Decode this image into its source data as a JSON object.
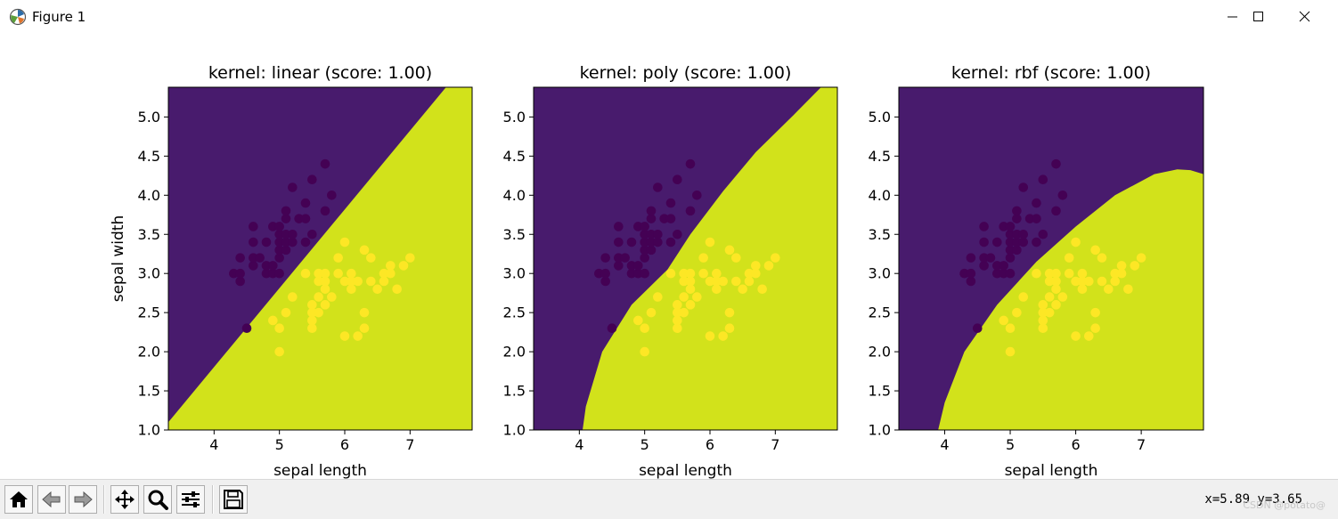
{
  "window": {
    "title": "Figure 1",
    "controls": {
      "minimize": "minimize",
      "maximize": "maximize",
      "close": "close"
    }
  },
  "toolbar": {
    "buttons": [
      "home-icon",
      "back-icon",
      "forward-icon",
      "pan-icon",
      "zoom-icon",
      "configure-icon",
      "save-icon"
    ],
    "coords": "x=5.89 y=3.65",
    "watermark": "CSDN @potato@"
  },
  "colors": {
    "class0": "#481b6d",
    "class1": "#d2e21b",
    "point0": "#440154",
    "point1": "#fde725"
  },
  "chart_data": [
    {
      "type": "scatter",
      "title": "kernel: linear (score: 1.00)",
      "xlabel": "sepal length",
      "ylabel": "sepal width",
      "xlim": [
        3.3,
        7.95
      ],
      "ylim": [
        1.0,
        5.38
      ],
      "xticks": [
        "4",
        "5",
        "6",
        "7"
      ],
      "yticks": [
        "1.0",
        "1.5",
        "2.0",
        "2.5",
        "3.0",
        "3.5",
        "4.0",
        "4.5",
        "5.0"
      ],
      "decision_boundary": [
        [
          3.3,
          1.1
        ],
        [
          7.55,
          5.38
        ]
      ]
    },
    {
      "type": "scatter",
      "title": "kernel: poly (score: 1.00)",
      "xlabel": "sepal length",
      "ylabel": "",
      "xlim": [
        3.3,
        7.95
      ],
      "ylim": [
        1.0,
        5.38
      ],
      "xticks": [
        "4",
        "5",
        "6",
        "7"
      ],
      "yticks": [
        "1.0",
        "1.5",
        "2.0",
        "2.5",
        "3.0",
        "3.5",
        "4.0",
        "4.5",
        "5.0"
      ],
      "decision_boundary": [
        [
          4.05,
          1.0
        ],
        [
          4.1,
          1.3
        ],
        [
          4.35,
          2.0
        ],
        [
          4.8,
          2.6
        ],
        [
          5.35,
          3.05
        ],
        [
          5.7,
          3.5
        ],
        [
          6.2,
          4.05
        ],
        [
          6.7,
          4.55
        ],
        [
          7.25,
          5.0
        ],
        [
          7.7,
          5.38
        ]
      ]
    },
    {
      "type": "scatter",
      "title": "kernel: rbf (score: 1.00)",
      "xlabel": "sepal length",
      "ylabel": "",
      "xlim": [
        3.3,
        7.95
      ],
      "ylim": [
        1.0,
        5.38
      ],
      "xticks": [
        "4",
        "5",
        "6",
        "7"
      ],
      "yticks": [
        "1.0",
        "1.5",
        "2.0",
        "2.5",
        "3.0",
        "3.5",
        "4.0",
        "4.5",
        "5.0"
      ],
      "decision_boundary": [
        [
          3.9,
          1.0
        ],
        [
          4.0,
          1.35
        ],
        [
          4.3,
          2.0
        ],
        [
          4.8,
          2.6
        ],
        [
          5.4,
          3.15
        ],
        [
          6.0,
          3.6
        ],
        [
          6.6,
          4.0
        ],
        [
          7.2,
          4.27
        ],
        [
          7.55,
          4.33
        ],
        [
          7.75,
          4.32
        ],
        [
          7.95,
          4.27
        ]
      ]
    }
  ],
  "scatter_points": {
    "class0": [
      [
        4.3,
        3.0
      ],
      [
        4.4,
        2.9
      ],
      [
        4.4,
        3.0
      ],
      [
        4.4,
        3.2
      ],
      [
        4.5,
        2.3
      ],
      [
        4.6,
        3.1
      ],
      [
        4.6,
        3.2
      ],
      [
        4.6,
        3.4
      ],
      [
        4.6,
        3.6
      ],
      [
        4.7,
        3.2
      ],
      [
        4.8,
        3.0
      ],
      [
        4.8,
        3.1
      ],
      [
        4.8,
        3.4
      ],
      [
        4.9,
        3.0
      ],
      [
        4.9,
        3.1
      ],
      [
        4.9,
        3.6
      ],
      [
        5.0,
        3.0
      ],
      [
        5.0,
        3.2
      ],
      [
        5.0,
        3.3
      ],
      [
        5.0,
        3.4
      ],
      [
        5.0,
        3.5
      ],
      [
        5.0,
        3.6
      ],
      [
        5.1,
        3.3
      ],
      [
        5.1,
        3.4
      ],
      [
        5.1,
        3.5
      ],
      [
        5.1,
        3.7
      ],
      [
        5.1,
        3.8
      ],
      [
        5.2,
        3.4
      ],
      [
        5.2,
        3.5
      ],
      [
        5.2,
        4.1
      ],
      [
        5.3,
        3.7
      ],
      [
        5.4,
        3.4
      ],
      [
        5.4,
        3.7
      ],
      [
        5.4,
        3.9
      ],
      [
        5.5,
        3.5
      ],
      [
        5.5,
        4.2
      ],
      [
        5.7,
        3.8
      ],
      [
        5.7,
        4.4
      ],
      [
        5.8,
        4.0
      ]
    ],
    "class1": [
      [
        4.9,
        2.4
      ],
      [
        5.0,
        2.0
      ],
      [
        5.0,
        2.3
      ],
      [
        5.1,
        2.5
      ],
      [
        5.2,
        2.7
      ],
      [
        5.4,
        3.0
      ],
      [
        5.5,
        2.3
      ],
      [
        5.5,
        2.4
      ],
      [
        5.5,
        2.5
      ],
      [
        5.5,
        2.6
      ],
      [
        5.6,
        2.5
      ],
      [
        5.6,
        2.7
      ],
      [
        5.6,
        2.9
      ],
      [
        5.6,
        3.0
      ],
      [
        5.7,
        2.6
      ],
      [
        5.7,
        2.8
      ],
      [
        5.7,
        2.9
      ],
      [
        5.7,
        3.0
      ],
      [
        5.8,
        2.7
      ],
      [
        5.9,
        3.0
      ],
      [
        5.9,
        3.2
      ],
      [
        6.0,
        2.2
      ],
      [
        6.0,
        2.9
      ],
      [
        6.0,
        3.4
      ],
      [
        6.1,
        2.8
      ],
      [
        6.1,
        2.9
      ],
      [
        6.1,
        3.0
      ],
      [
        6.2,
        2.2
      ],
      [
        6.2,
        2.9
      ],
      [
        6.3,
        2.3
      ],
      [
        6.3,
        2.5
      ],
      [
        6.3,
        3.3
      ],
      [
        6.4,
        2.9
      ],
      [
        6.4,
        3.2
      ],
      [
        6.5,
        2.8
      ],
      [
        6.6,
        2.9
      ],
      [
        6.6,
        3.0
      ],
      [
        6.7,
        3.0
      ],
      [
        6.7,
        3.1
      ],
      [
        6.8,
        2.8
      ],
      [
        6.9,
        3.1
      ],
      [
        7.0,
        3.2
      ]
    ]
  }
}
